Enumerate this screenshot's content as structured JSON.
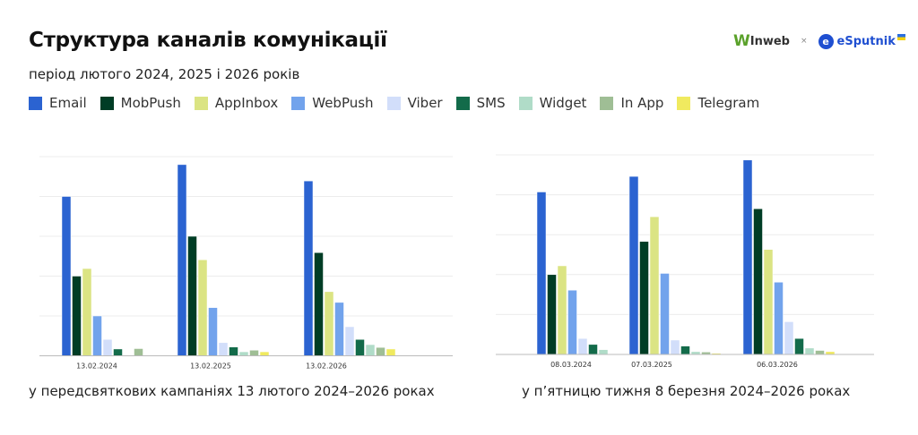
{
  "title": "Структура каналів комунікації",
  "subtitle": "період лютого 2024, 2025 і 2026 років",
  "logos": {
    "left": "Inweb",
    "separator": "×",
    "right": "eSputnik"
  },
  "legend": [
    {
      "name": "Email",
      "color": "#2b63d1"
    },
    {
      "name": "MobPush",
      "color": "#003d25"
    },
    {
      "name": "AppInbox",
      "color": "#dbe483"
    },
    {
      "name": "WebPush",
      "color": "#72a3ec"
    },
    {
      "name": "Viber",
      "color": "#d2defa"
    },
    {
      "name": "SMS",
      "color": "#136b4a"
    },
    {
      "name": "Widget",
      "color": "#b0dcc8"
    },
    {
      "name": "In App",
      "color": "#9fbe95"
    },
    {
      "name": "Telegram",
      "color": "#f0ea5f"
    }
  ],
  "chart_data": [
    {
      "type": "bar",
      "caption": "у передсвяткових кампаніях 13 лютого 2024–2026 роках",
      "categories": [
        "13.02.2024",
        "13.02.2025",
        "13.02.2026"
      ],
      "ylim": [
        0,
        5
      ],
      "grid": true,
      "y_tick_labels_shown": false,
      "series": [
        {
          "name": "Email",
          "values": [
            4.0,
            4.8,
            4.39
          ]
        },
        {
          "name": "MobPush",
          "values": [
            2.0,
            3.0,
            2.59
          ]
        },
        {
          "name": "AppInbox",
          "values": [
            2.19,
            2.41,
            1.61
          ]
        },
        {
          "name": "WebPush",
          "values": [
            1.0,
            1.21,
            1.34
          ]
        },
        {
          "name": "Viber",
          "values": [
            0.41,
            0.33,
            0.73
          ]
        },
        {
          "name": "SMS",
          "values": [
            0.17,
            0.22,
            0.41
          ]
        },
        {
          "name": "Widget",
          "values": [
            0,
            0.1,
            0.28
          ]
        },
        {
          "name": "In App",
          "values": [
            0.18,
            0.14,
            0.21
          ]
        },
        {
          "name": "Telegram",
          "values": [
            0,
            0.1,
            0.17
          ]
        }
      ]
    },
    {
      "type": "bar",
      "caption": "у п’ятницю тижня 8 березня 2024–2026 роках",
      "categories": [
        "08.03.2024",
        "07.03.2025",
        "06.03.2026"
      ],
      "ylim": [
        0,
        5
      ],
      "grid": true,
      "y_tick_labels_shown": false,
      "series": [
        {
          "name": "Email",
          "values": [
            4.07,
            4.46,
            4.87
          ]
        },
        {
          "name": "MobPush",
          "values": [
            2.0,
            2.83,
            3.65
          ]
        },
        {
          "name": "AppInbox",
          "values": [
            2.22,
            3.45,
            2.63
          ]
        },
        {
          "name": "WebPush",
          "values": [
            1.61,
            2.03,
            1.81
          ]
        },
        {
          "name": "Viber",
          "values": [
            0.4,
            0.36,
            0.82
          ]
        },
        {
          "name": "SMS",
          "values": [
            0.25,
            0.21,
            0.4
          ]
        },
        {
          "name": "Widget",
          "values": [
            0.12,
            0.07,
            0.16
          ]
        },
        {
          "name": "In App",
          "values": [
            0,
            0.06,
            0.1
          ]
        },
        {
          "name": "Telegram",
          "values": [
            0,
            0.03,
            0.07
          ]
        }
      ]
    }
  ]
}
